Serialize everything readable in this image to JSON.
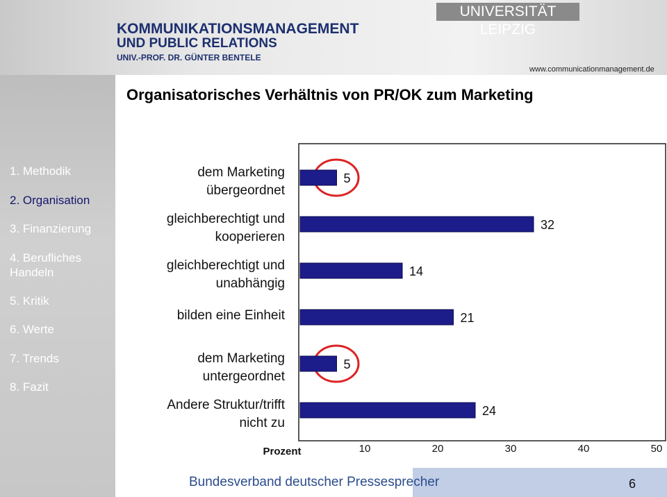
{
  "header": {
    "university": "UNIVERSITÄT LEIPZIG",
    "line1": "KOMMUNIKATIONSMANAGEMENT",
    "line2": "UND PUBLIC RELATIONS",
    "line3": "UNIV.-PROF. DR. GÜNTER BENTELE",
    "url": "www.communicationmanagement.de"
  },
  "nav": [
    "1. Methodik",
    "2. Organisation",
    "3. Finanzierung",
    "4. Berufliches Handeln",
    "5. Kritik",
    "6. Werte",
    "7. Trends",
    "8. Fazit"
  ],
  "chart_data": {
    "type": "barh",
    "title": "Organisatorisches Verhältnis von PR/OK zum Marketing",
    "categories": [
      "dem Marketing übergeordnet",
      "gleichberechtigt und kooperieren",
      "gleichberechtigt und unabhängig",
      "bilden eine Einheit",
      "dem Marketing untergeordnet",
      "Andere Struktur/trifft nicht zu"
    ],
    "values": [
      5,
      32,
      14,
      21,
      5,
      24
    ],
    "color": "#1c1c8a",
    "xlabel": "Prozent",
    "xlim": [
      0,
      50
    ],
    "xticks": [
      10,
      20,
      30,
      40,
      50
    ]
  },
  "footer": {
    "logo": "Bundesverband deutscher Pressesprecher",
    "page": "6"
  }
}
